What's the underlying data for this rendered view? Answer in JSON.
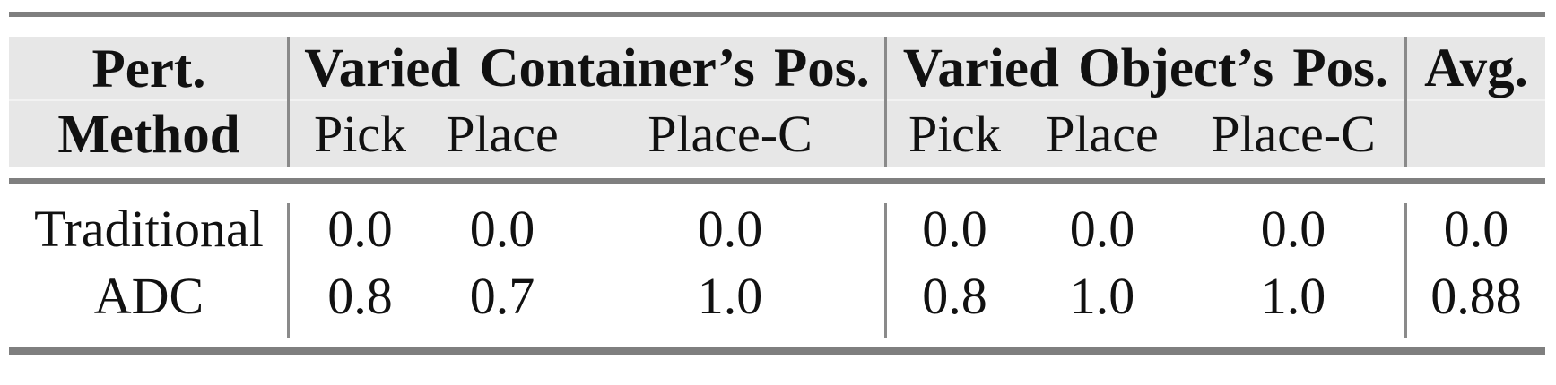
{
  "table": {
    "header": {
      "method_line1": "Pert.",
      "method_line2": "Method",
      "group_container": "Varied Container’s Pos.",
      "group_object": "Varied Object’s Pos.",
      "avg": "Avg.",
      "sub": [
        "Pick",
        "Place",
        "Place-C",
        "Pick",
        "Place",
        "Place-C"
      ]
    },
    "rows": [
      {
        "method": "Traditional",
        "values": [
          "0.0",
          "0.0",
          "0.0",
          "0.0",
          "0.0",
          "0.0"
        ],
        "avg": "0.0"
      },
      {
        "method": "ADC",
        "values": [
          "0.8",
          "0.7",
          "1.0",
          "0.8",
          "1.0",
          "1.0"
        ],
        "avg": "0.88"
      }
    ]
  },
  "colors": {
    "header_bg": "#e7e7e7",
    "rule_gray": "#7f7f7f",
    "divider_gray": "#8a8a8a",
    "header_split_line": "#f2f2f2",
    "text": "#111111",
    "background": "#ffffff"
  },
  "chart_data": {
    "type": "table",
    "title": "",
    "column_groups": [
      "Pert. Method",
      "Varied Container’s Pos.",
      "Varied Object’s Pos.",
      "Avg."
    ],
    "columns": [
      "Pert. Method",
      "Container Pick",
      "Container Place",
      "Container Place-C",
      "Object Pick",
      "Object Place",
      "Object Place-C",
      "Avg."
    ],
    "rows": [
      [
        "Traditional",
        0.0,
        0.0,
        0.0,
        0.0,
        0.0,
        0.0,
        0.0
      ],
      [
        "ADC",
        0.8,
        0.7,
        1.0,
        0.8,
        1.0,
        1.0,
        0.88
      ]
    ]
  }
}
